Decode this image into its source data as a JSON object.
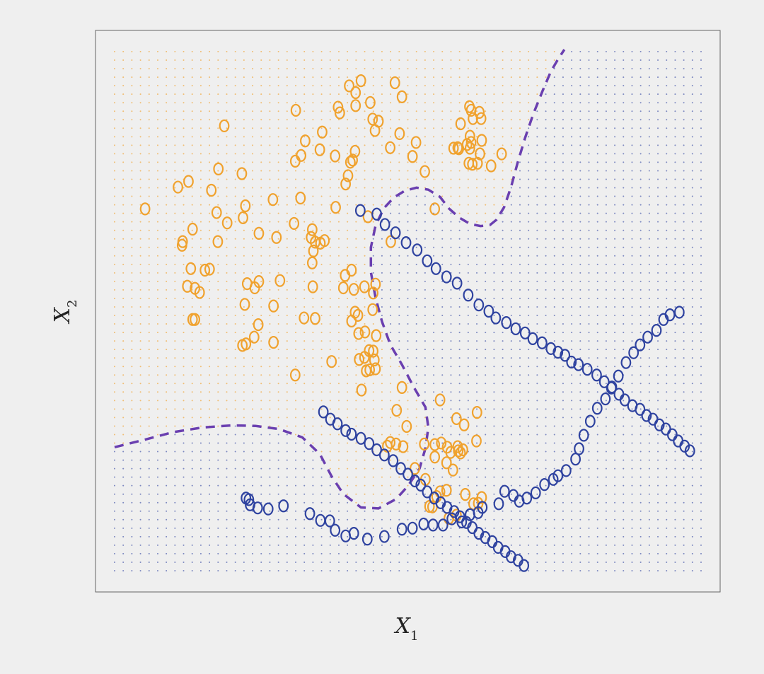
{
  "chart_data": {
    "type": "scatter",
    "title": "",
    "xlabel": "X",
    "xlabel_sub": "1",
    "ylabel": "X",
    "ylabel_sub": "2",
    "xlim": [
      0,
      1
    ],
    "ylim": [
      0,
      1
    ],
    "grid": false,
    "ticks": false,
    "background_dots": true,
    "colors": {
      "orange": "#f0a22e",
      "blue": "#2f43a0",
      "boundary": "#6a3fb0",
      "panel": "#efefef"
    },
    "series": [
      {
        "class": "orange",
        "marker": "O",
        "points": [
          [
            0.052,
            0.697
          ],
          [
            0.108,
            0.739
          ],
          [
            0.126,
            0.75
          ],
          [
            0.133,
            0.658
          ],
          [
            0.115,
            0.627
          ],
          [
            0.116,
            0.634
          ],
          [
            0.13,
            0.582
          ],
          [
            0.145,
            0.536
          ],
          [
            0.137,
            0.544
          ],
          [
            0.124,
            0.548
          ],
          [
            0.137,
            0.484
          ],
          [
            0.133,
            0.484
          ],
          [
            0.154,
            0.579
          ],
          [
            0.162,
            0.581
          ],
          [
            0.176,
            0.634
          ],
          [
            0.174,
            0.69
          ],
          [
            0.192,
            0.67
          ],
          [
            0.165,
            0.733
          ],
          [
            0.177,
            0.774
          ],
          [
            0.187,
            0.857
          ],
          [
            0.217,
            0.765
          ],
          [
            0.219,
            0.68
          ],
          [
            0.223,
            0.703
          ],
          [
            0.246,
            0.65
          ],
          [
            0.276,
            0.642
          ],
          [
            0.27,
            0.715
          ],
          [
            0.317,
            0.718
          ],
          [
            0.309,
            0.887
          ],
          [
            0.308,
            0.789
          ],
          [
            0.318,
            0.8
          ],
          [
            0.306,
            0.669
          ],
          [
            0.282,
            0.559
          ],
          [
            0.271,
            0.51
          ],
          [
            0.238,
            0.45
          ],
          [
            0.246,
            0.557
          ],
          [
            0.239,
            0.545
          ],
          [
            0.226,
            0.553
          ],
          [
            0.222,
            0.513
          ],
          [
            0.224,
            0.437
          ],
          [
            0.218,
            0.434
          ],
          [
            0.245,
            0.474
          ],
          [
            0.271,
            0.44
          ],
          [
            0.323,
            0.487
          ],
          [
            0.308,
            0.377
          ],
          [
            0.37,
            0.403
          ],
          [
            0.342,
            0.486
          ],
          [
            0.338,
            0.547
          ],
          [
            0.337,
            0.593
          ],
          [
            0.339,
            0.616
          ],
          [
            0.342,
            0.633
          ],
          [
            0.335,
            0.642
          ],
          [
            0.337,
            0.657
          ],
          [
            0.351,
            0.631
          ],
          [
            0.358,
            0.636
          ],
          [
            0.377,
            0.7
          ],
          [
            0.35,
            0.811
          ],
          [
            0.354,
            0.845
          ],
          [
            0.381,
            0.893
          ],
          [
            0.384,
            0.882
          ],
          [
            0.325,
            0.828
          ],
          [
            0.376,
            0.799
          ],
          [
            0.402,
            0.787
          ],
          [
            0.406,
            0.791
          ],
          [
            0.394,
            0.745
          ],
          [
            0.398,
            0.761
          ],
          [
            0.41,
            0.808
          ],
          [
            0.411,
            0.896
          ],
          [
            0.436,
            0.902
          ],
          [
            0.444,
            0.848
          ],
          [
            0.44,
            0.87
          ],
          [
            0.411,
            0.921
          ],
          [
            0.4,
            0.934
          ],
          [
            0.42,
            0.944
          ],
          [
            0.45,
            0.866
          ],
          [
            0.47,
            0.815
          ],
          [
            0.471,
            0.634
          ],
          [
            0.432,
            0.682
          ],
          [
            0.404,
            0.579
          ],
          [
            0.39,
            0.545
          ],
          [
            0.393,
            0.569
          ],
          [
            0.408,
            0.542
          ],
          [
            0.426,
            0.547
          ],
          [
            0.415,
            0.492
          ],
          [
            0.41,
            0.498
          ],
          [
            0.404,
            0.481
          ],
          [
            0.416,
            0.457
          ],
          [
            0.427,
            0.46
          ],
          [
            0.446,
            0.453
          ],
          [
            0.434,
            0.424
          ],
          [
            0.426,
            0.411
          ],
          [
            0.443,
            0.406
          ],
          [
            0.435,
            0.387
          ],
          [
            0.417,
            0.407
          ],
          [
            0.421,
            0.348
          ],
          [
            0.429,
            0.385
          ],
          [
            0.445,
            0.389
          ],
          [
            0.441,
            0.423
          ],
          [
            0.44,
            0.503
          ],
          [
            0.441,
            0.535
          ],
          [
            0.445,
            0.552
          ],
          [
            0.514,
            0.825
          ],
          [
            0.478,
            0.94
          ],
          [
            0.49,
            0.913
          ],
          [
            0.486,
            0.842
          ],
          [
            0.508,
            0.798
          ],
          [
            0.529,
            0.769
          ],
          [
            0.546,
            0.697
          ],
          [
            0.578,
            0.814
          ],
          [
            0.585,
            0.815
          ],
          [
            0.587,
            0.813
          ],
          [
            0.604,
            0.785
          ],
          [
            0.61,
            0.783
          ],
          [
            0.608,
            0.825
          ],
          [
            0.611,
            0.871
          ],
          [
            0.606,
            0.837
          ],
          [
            0.606,
            0.814
          ],
          [
            0.619,
            0.785
          ],
          [
            0.623,
            0.803
          ],
          [
            0.626,
            0.829
          ],
          [
            0.642,
            0.78
          ],
          [
            0.66,
            0.803
          ],
          [
            0.601,
            0.821
          ],
          [
            0.59,
            0.861
          ],
          [
            0.608,
            0.887
          ],
          [
            0.625,
            0.871
          ],
          [
            0.605,
            0.894
          ],
          [
            0.622,
            0.883
          ],
          [
            0.49,
            0.353
          ],
          [
            0.481,
            0.309
          ],
          [
            0.465,
            0.24
          ],
          [
            0.512,
            0.197
          ],
          [
            0.557,
            0.246
          ],
          [
            0.567,
            0.238
          ],
          [
            0.53,
            0.176
          ],
          [
            0.528,
            0.244
          ],
          [
            0.546,
            0.219
          ],
          [
            0.566,
            0.155
          ],
          [
            0.555,
            0.152
          ],
          [
            0.549,
            0.143
          ],
          [
            0.542,
            0.123
          ],
          [
            0.537,
            0.124
          ],
          [
            0.57,
            0.101
          ],
          [
            0.583,
            0.107
          ],
          [
            0.612,
            0.129
          ],
          [
            0.62,
            0.13
          ],
          [
            0.626,
            0.141
          ],
          [
            0.598,
            0.147
          ],
          [
            0.577,
            0.194
          ],
          [
            0.546,
            0.243
          ],
          [
            0.573,
            0.228
          ],
          [
            0.59,
            0.227
          ],
          [
            0.566,
            0.208
          ],
          [
            0.586,
            0.231
          ],
          [
            0.585,
            0.239
          ],
          [
            0.594,
            0.233
          ],
          [
            0.618,
            0.305
          ],
          [
            0.617,
            0.25
          ],
          [
            0.596,
            0.281
          ],
          [
            0.583,
            0.293
          ],
          [
            0.555,
            0.329
          ],
          [
            0.498,
            0.278
          ],
          [
            0.48,
            0.244
          ],
          [
            0.47,
            0.247
          ],
          [
            0.492,
            0.239
          ]
        ]
      },
      {
        "class": "blue",
        "marker": "O",
        "points": [
          [
            0.224,
            0.14
          ],
          [
            0.229,
            0.137
          ],
          [
            0.231,
            0.127
          ],
          [
            0.244,
            0.121
          ],
          [
            0.262,
            0.119
          ],
          [
            0.288,
            0.125
          ],
          [
            0.333,
            0.11
          ],
          [
            0.351,
            0.097
          ],
          [
            0.367,
            0.096
          ],
          [
            0.376,
            0.078
          ],
          [
            0.394,
            0.067
          ],
          [
            0.408,
            0.072
          ],
          [
            0.431,
            0.061
          ],
          [
            0.46,
            0.066
          ],
          [
            0.49,
            0.08
          ],
          [
            0.508,
            0.082
          ],
          [
            0.527,
            0.09
          ],
          [
            0.543,
            0.088
          ],
          [
            0.56,
            0.088
          ],
          [
            0.575,
            0.1
          ],
          [
            0.592,
            0.094
          ],
          [
            0.606,
            0.108
          ],
          [
            0.62,
            0.112
          ],
          [
            0.627,
            0.122
          ],
          [
            0.655,
            0.129
          ],
          [
            0.665,
            0.153
          ],
          [
            0.68,
            0.145
          ],
          [
            0.69,
            0.134
          ],
          [
            0.703,
            0.14
          ],
          [
            0.718,
            0.15
          ],
          [
            0.733,
            0.166
          ],
          [
            0.748,
            0.176
          ],
          [
            0.756,
            0.183
          ],
          [
            0.77,
            0.193
          ],
          [
            0.786,
            0.215
          ],
          [
            0.792,
            0.235
          ],
          [
            0.8,
            0.261
          ],
          [
            0.811,
            0.288
          ],
          [
            0.823,
            0.313
          ],
          [
            0.837,
            0.331
          ],
          [
            0.848,
            0.354
          ],
          [
            0.859,
            0.375
          ],
          [
            0.872,
            0.401
          ],
          [
            0.885,
            0.42
          ],
          [
            0.896,
            0.435
          ],
          [
            0.909,
            0.45
          ],
          [
            0.924,
            0.463
          ],
          [
            0.936,
            0.484
          ],
          [
            0.947,
            0.493
          ],
          [
            0.963,
            0.498
          ],
          [
            0.419,
            0.694
          ],
          [
            0.447,
            0.687
          ],
          [
            0.461,
            0.667
          ],
          [
            0.479,
            0.651
          ],
          [
            0.497,
            0.632
          ],
          [
            0.516,
            0.618
          ],
          [
            0.533,
            0.597
          ],
          [
            0.548,
            0.582
          ],
          [
            0.566,
            0.566
          ],
          [
            0.584,
            0.554
          ],
          [
            0.603,
            0.531
          ],
          [
            0.621,
            0.512
          ],
          [
            0.638,
            0.5
          ],
          [
            0.65,
            0.487
          ],
          [
            0.668,
            0.478
          ],
          [
            0.684,
            0.466
          ],
          [
            0.7,
            0.458
          ],
          [
            0.713,
            0.447
          ],
          [
            0.729,
            0.439
          ],
          [
            0.744,
            0.428
          ],
          [
            0.756,
            0.421
          ],
          [
            0.768,
            0.415
          ],
          [
            0.779,
            0.402
          ],
          [
            0.791,
            0.397
          ],
          [
            0.806,
            0.388
          ],
          [
            0.822,
            0.377
          ],
          [
            0.835,
            0.364
          ],
          [
            0.847,
            0.352
          ],
          [
            0.86,
            0.34
          ],
          [
            0.87,
            0.329
          ],
          [
            0.883,
            0.318
          ],
          [
            0.896,
            0.311
          ],
          [
            0.907,
            0.299
          ],
          [
            0.918,
            0.292
          ],
          [
            0.929,
            0.281
          ],
          [
            0.94,
            0.273
          ],
          [
            0.951,
            0.262
          ],
          [
            0.961,
            0.25
          ],
          [
            0.972,
            0.24
          ],
          [
            0.981,
            0.231
          ],
          [
            0.356,
            0.306
          ],
          [
            0.368,
            0.292
          ],
          [
            0.38,
            0.283
          ],
          [
            0.394,
            0.27
          ],
          [
            0.404,
            0.263
          ],
          [
            0.42,
            0.255
          ],
          [
            0.434,
            0.245
          ],
          [
            0.447,
            0.233
          ],
          [
            0.46,
            0.223
          ],
          [
            0.475,
            0.212
          ],
          [
            0.488,
            0.197
          ],
          [
            0.5,
            0.186
          ],
          [
            0.512,
            0.173
          ],
          [
            0.522,
            0.165
          ],
          [
            0.533,
            0.152
          ],
          [
            0.545,
            0.14
          ],
          [
            0.556,
            0.131
          ],
          [
            0.567,
            0.122
          ],
          [
            0.579,
            0.114
          ],
          [
            0.589,
            0.104
          ],
          [
            0.6,
            0.093
          ],
          [
            0.61,
            0.083
          ],
          [
            0.621,
            0.072
          ],
          [
            0.632,
            0.064
          ],
          [
            0.644,
            0.056
          ],
          [
            0.654,
            0.045
          ],
          [
            0.666,
            0.037
          ],
          [
            0.676,
            0.027
          ],
          [
            0.688,
            0.02
          ],
          [
            0.698,
            0.01
          ]
        ]
      }
    ]
  }
}
